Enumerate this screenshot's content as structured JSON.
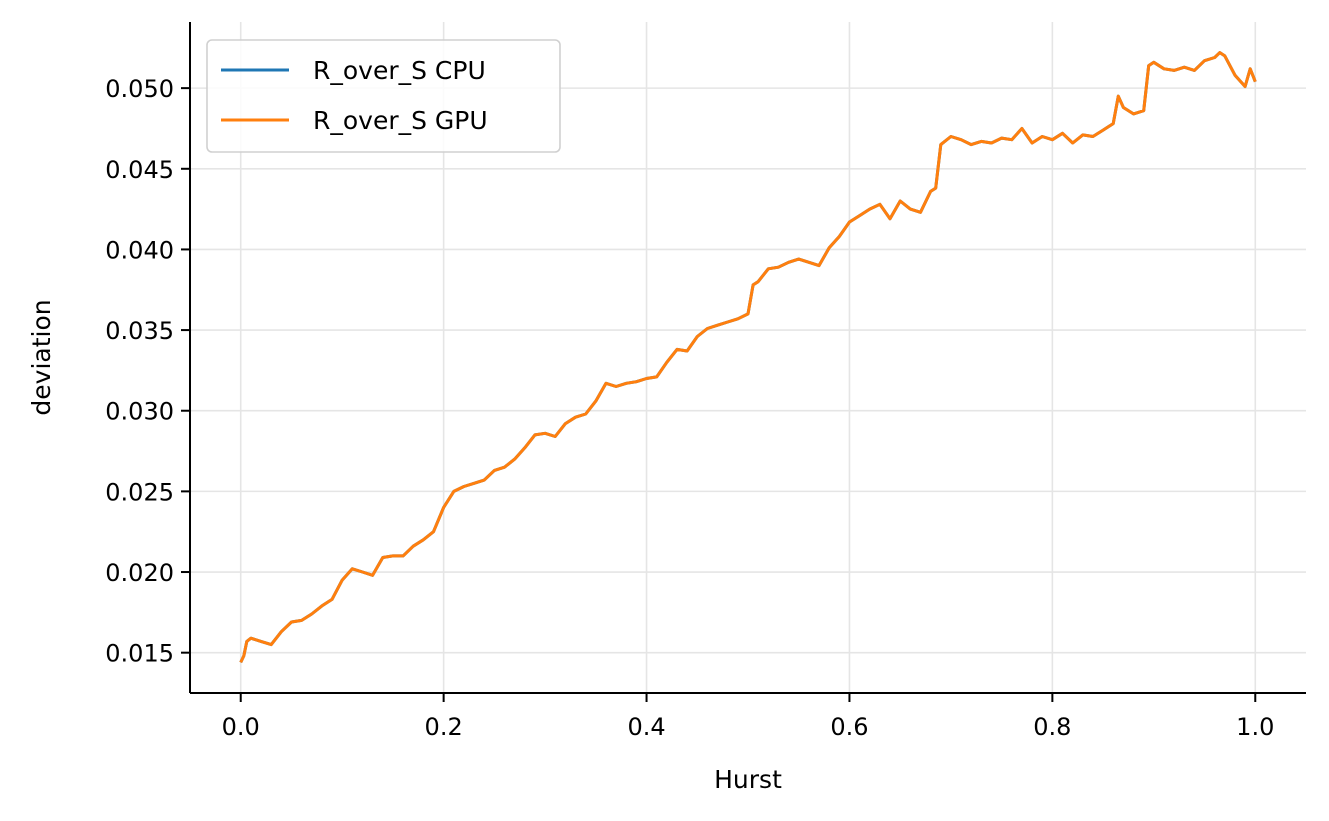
{
  "chart_data": {
    "type": "line",
    "xlabel": "Hurst",
    "ylabel": "deviation",
    "xlim": [
      -0.05,
      1.05
    ],
    "ylim": [
      0.0125,
      0.0541
    ],
    "xticks": [
      0.0,
      0.2,
      0.4,
      0.6,
      0.8,
      1.0
    ],
    "xtick_labels": [
      "0.0",
      "0.2",
      "0.4",
      "0.6",
      "0.8",
      "1.0"
    ],
    "yticks": [
      0.015,
      0.02,
      0.025,
      0.03,
      0.035,
      0.04,
      0.045,
      0.05
    ],
    "ytick_labels": [
      "0.015",
      "0.020",
      "0.025",
      "0.030",
      "0.035",
      "0.040",
      "0.045",
      "0.050"
    ],
    "grid": true,
    "legend_position": "top-left",
    "series": [
      {
        "name": "R_over_S CPU",
        "color": "#1f77b4",
        "x": [
          0.0,
          0.003,
          0.006,
          0.01,
          0.02,
          0.03,
          0.04,
          0.05,
          0.06,
          0.07,
          0.08,
          0.09,
          0.1,
          0.11,
          0.12,
          0.13,
          0.14,
          0.15,
          0.16,
          0.17,
          0.18,
          0.19,
          0.2,
          0.21,
          0.22,
          0.23,
          0.24,
          0.25,
          0.26,
          0.27,
          0.28,
          0.29,
          0.3,
          0.31,
          0.32,
          0.33,
          0.34,
          0.35,
          0.36,
          0.37,
          0.38,
          0.39,
          0.4,
          0.41,
          0.42,
          0.43,
          0.44,
          0.45,
          0.46,
          0.47,
          0.48,
          0.49,
          0.5,
          0.505,
          0.51,
          0.52,
          0.53,
          0.54,
          0.55,
          0.56,
          0.57,
          0.58,
          0.59,
          0.6,
          0.61,
          0.62,
          0.63,
          0.64,
          0.65,
          0.66,
          0.67,
          0.68,
          0.685,
          0.69,
          0.7,
          0.71,
          0.72,
          0.73,
          0.74,
          0.75,
          0.76,
          0.77,
          0.78,
          0.79,
          0.8,
          0.81,
          0.82,
          0.83,
          0.84,
          0.85,
          0.86,
          0.865,
          0.87,
          0.88,
          0.89,
          0.895,
          0.9,
          0.91,
          0.92,
          0.93,
          0.94,
          0.95,
          0.96,
          0.965,
          0.97,
          0.98,
          0.99,
          0.995,
          1.0
        ],
        "y": [
          0.0144,
          0.0148,
          0.0157,
          0.0159,
          0.0157,
          0.0155,
          0.0163,
          0.0169,
          0.017,
          0.0174,
          0.0179,
          0.0183,
          0.0195,
          0.0202,
          0.02,
          0.0198,
          0.0209,
          0.021,
          0.021,
          0.0216,
          0.022,
          0.0225,
          0.024,
          0.025,
          0.0253,
          0.0255,
          0.0257,
          0.0263,
          0.0265,
          0.027,
          0.0277,
          0.0285,
          0.0286,
          0.0284,
          0.0292,
          0.0296,
          0.0298,
          0.0306,
          0.0317,
          0.0315,
          0.0317,
          0.0318,
          0.032,
          0.0321,
          0.033,
          0.0338,
          0.0337,
          0.0346,
          0.0351,
          0.0353,
          0.0355,
          0.0357,
          0.036,
          0.0378,
          0.038,
          0.0388,
          0.0389,
          0.0392,
          0.0394,
          0.0392,
          0.039,
          0.0401,
          0.0408,
          0.0417,
          0.0421,
          0.0425,
          0.0428,
          0.0419,
          0.043,
          0.0425,
          0.0423,
          0.0436,
          0.0438,
          0.0465,
          0.047,
          0.0468,
          0.0465,
          0.0467,
          0.0466,
          0.0469,
          0.0468,
          0.0475,
          0.0466,
          0.047,
          0.0468,
          0.0472,
          0.0466,
          0.0471,
          0.047,
          0.0474,
          0.0478,
          0.0495,
          0.0488,
          0.0484,
          0.0486,
          0.0514,
          0.0516,
          0.0512,
          0.0511,
          0.0513,
          0.0511,
          0.0517,
          0.0519,
          0.0522,
          0.052,
          0.0508,
          0.0501,
          0.0512,
          0.0504
        ]
      },
      {
        "name": "R_over_S GPU",
        "color": "#ff7f0e",
        "x": [
          0.0,
          0.003,
          0.006,
          0.01,
          0.02,
          0.03,
          0.04,
          0.05,
          0.06,
          0.07,
          0.08,
          0.09,
          0.1,
          0.11,
          0.12,
          0.13,
          0.14,
          0.15,
          0.16,
          0.17,
          0.18,
          0.19,
          0.2,
          0.21,
          0.22,
          0.23,
          0.24,
          0.25,
          0.26,
          0.27,
          0.28,
          0.29,
          0.3,
          0.31,
          0.32,
          0.33,
          0.34,
          0.35,
          0.36,
          0.37,
          0.38,
          0.39,
          0.4,
          0.41,
          0.42,
          0.43,
          0.44,
          0.45,
          0.46,
          0.47,
          0.48,
          0.49,
          0.5,
          0.505,
          0.51,
          0.52,
          0.53,
          0.54,
          0.55,
          0.56,
          0.57,
          0.58,
          0.59,
          0.6,
          0.61,
          0.62,
          0.63,
          0.64,
          0.65,
          0.66,
          0.67,
          0.68,
          0.685,
          0.69,
          0.7,
          0.71,
          0.72,
          0.73,
          0.74,
          0.75,
          0.76,
          0.77,
          0.78,
          0.79,
          0.8,
          0.81,
          0.82,
          0.83,
          0.84,
          0.85,
          0.86,
          0.865,
          0.87,
          0.88,
          0.89,
          0.895,
          0.9,
          0.91,
          0.92,
          0.93,
          0.94,
          0.95,
          0.96,
          0.965,
          0.97,
          0.98,
          0.99,
          0.995,
          1.0
        ],
        "y": [
          0.0144,
          0.0148,
          0.0157,
          0.0159,
          0.0157,
          0.0155,
          0.0163,
          0.0169,
          0.017,
          0.0174,
          0.0179,
          0.0183,
          0.0195,
          0.0202,
          0.02,
          0.0198,
          0.0209,
          0.021,
          0.021,
          0.0216,
          0.022,
          0.0225,
          0.024,
          0.025,
          0.0253,
          0.0255,
          0.0257,
          0.0263,
          0.0265,
          0.027,
          0.0277,
          0.0285,
          0.0286,
          0.0284,
          0.0292,
          0.0296,
          0.0298,
          0.0306,
          0.0317,
          0.0315,
          0.0317,
          0.0318,
          0.032,
          0.0321,
          0.033,
          0.0338,
          0.0337,
          0.0346,
          0.0351,
          0.0353,
          0.0355,
          0.0357,
          0.036,
          0.0378,
          0.038,
          0.0388,
          0.0389,
          0.0392,
          0.0394,
          0.0392,
          0.039,
          0.0401,
          0.0408,
          0.0417,
          0.0421,
          0.0425,
          0.0428,
          0.0419,
          0.043,
          0.0425,
          0.0423,
          0.0436,
          0.0438,
          0.0465,
          0.047,
          0.0468,
          0.0465,
          0.0467,
          0.0466,
          0.0469,
          0.0468,
          0.0475,
          0.0466,
          0.047,
          0.0468,
          0.0472,
          0.0466,
          0.0471,
          0.047,
          0.0474,
          0.0478,
          0.0495,
          0.0488,
          0.0484,
          0.0486,
          0.0514,
          0.0516,
          0.0512,
          0.0511,
          0.0513,
          0.0511,
          0.0517,
          0.0519,
          0.0522,
          0.052,
          0.0508,
          0.0501,
          0.0512,
          0.0504
        ]
      }
    ]
  }
}
